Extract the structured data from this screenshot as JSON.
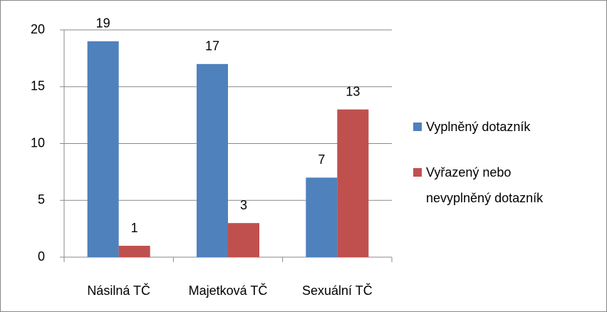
{
  "chart_data": {
    "type": "bar",
    "categories": [
      "Násilná TČ",
      "Majetková TČ",
      "Sexuální TČ"
    ],
    "series": [
      {
        "name": "Vyplněný dotazník",
        "color": "#4f81bd",
        "values": [
          19,
          17,
          7
        ]
      },
      {
        "name": "Vyřazený nebo nevyplněný dotazník",
        "color": "#c0504d",
        "values": [
          1,
          3,
          13
        ]
      }
    ],
    "ylim": [
      0,
      20
    ],
    "yticks": [
      0,
      5,
      10,
      15,
      20
    ],
    "grid": true,
    "legend": "right"
  }
}
